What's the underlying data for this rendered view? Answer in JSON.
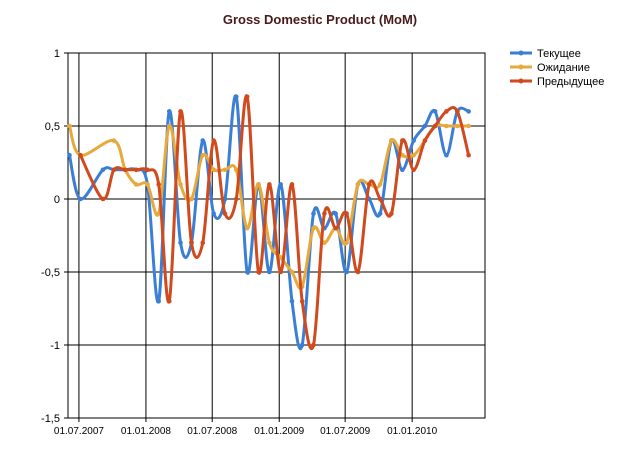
{
  "chart_data": {
    "type": "line",
    "title": "Gross Domestic Product (MoM)",
    "xlabel": "",
    "ylabel": "",
    "ylim": [
      -1.5,
      1
    ],
    "yticks": [
      -1.5,
      -1,
      -0.5,
      0,
      0.5,
      1
    ],
    "yticklabels": [
      "-1,5",
      "-1",
      "-0,5",
      "0",
      "0,5",
      "1"
    ],
    "xlim": [
      "2007-06-01",
      "2010-07-20"
    ],
    "xticks": [
      "2007-07-01",
      "2008-01-01",
      "2008-07-01",
      "2009-01-01",
      "2009-07-01",
      "2010-01-01"
    ],
    "xticklabels": [
      "01.07.2007",
      "01.01.2008",
      "01.07.2008",
      "01.01.2009",
      "01.07.2009",
      "01.01.2010"
    ],
    "grid": true,
    "legend_position": "top-right",
    "series": [
      {
        "name": "Текущее",
        "color": "#3a7fd5",
        "x": [
          "2007-06-05",
          "2007-07-05",
          "2007-09-05",
          "2007-10-05",
          "2007-11-05",
          "2007-12-05",
          "2008-01-05",
          "2008-02-05",
          "2008-03-05",
          "2008-04-05",
          "2008-05-05",
          "2008-06-05",
          "2008-07-05",
          "2008-08-05",
          "2008-09-05",
          "2008-10-05",
          "2008-11-05",
          "2008-12-05",
          "2009-01-05",
          "2009-02-05",
          "2009-03-05",
          "2009-04-05",
          "2009-05-05",
          "2009-06-05",
          "2009-07-05",
          "2009-08-05",
          "2009-09-05",
          "2009-10-05",
          "2009-11-05",
          "2009-12-05",
          "2010-01-05",
          "2010-02-05",
          "2010-03-05",
          "2010-04-05",
          "2010-05-05",
          "2010-06-05"
        ],
        "y": [
          0.3,
          0.0,
          0.2,
          0.2,
          0.2,
          0.2,
          0.1,
          -0.7,
          0.6,
          -0.3,
          -0.3,
          0.4,
          -0.1,
          0.0,
          0.7,
          -0.5,
          0.1,
          -0.5,
          0.1,
          -0.7,
          -1.0,
          -0.1,
          -0.2,
          -0.1,
          -0.5,
          0.1,
          0.0,
          -0.1,
          0.4,
          0.2,
          0.4,
          0.5,
          0.6,
          0.3,
          0.6,
          0.6
        ]
      },
      {
        "name": "Ожидание",
        "color": "#e8a93c",
        "x": [
          "2007-06-05",
          "2007-07-05",
          "2007-10-05",
          "2007-11-05",
          "2007-12-05",
          "2008-01-05",
          "2008-02-05",
          "2008-03-05",
          "2008-04-05",
          "2008-05-05",
          "2008-06-05",
          "2008-07-05",
          "2008-08-05",
          "2008-09-05",
          "2008-10-05",
          "2008-11-05",
          "2008-12-05",
          "2009-01-05",
          "2009-02-05",
          "2009-03-05",
          "2009-04-05",
          "2009-05-05",
          "2009-06-05",
          "2009-07-05",
          "2009-08-05",
          "2009-09-05",
          "2009-10-05",
          "2009-11-05",
          "2009-12-05",
          "2010-01-05",
          "2010-02-05",
          "2010-03-05",
          "2010-04-05",
          "2010-05-05",
          "2010-06-05"
        ],
        "y": [
          0.5,
          0.3,
          0.4,
          0.2,
          0.1,
          0.1,
          -0.1,
          0.5,
          0.1,
          0.0,
          0.3,
          0.2,
          0.2,
          0.2,
          -0.2,
          0.1,
          -0.3,
          -0.4,
          -0.5,
          -0.6,
          -0.2,
          -0.3,
          -0.2,
          -0.3,
          0.1,
          0.1,
          0.1,
          0.4,
          0.3,
          0.3,
          0.4,
          0.5,
          0.5,
          0.5,
          0.5
        ]
      },
      {
        "name": "Предыдущее",
        "color": "#d04a1e",
        "x": [
          "2007-07-05",
          "2007-09-05",
          "2007-10-05",
          "2007-11-05",
          "2007-12-05",
          "2008-01-05",
          "2008-02-05",
          "2008-03-05",
          "2008-04-05",
          "2008-05-05",
          "2008-06-05",
          "2008-07-05",
          "2008-08-05",
          "2008-09-05",
          "2008-10-05",
          "2008-11-05",
          "2008-12-05",
          "2009-01-05",
          "2009-02-05",
          "2009-03-05",
          "2009-04-05",
          "2009-05-05",
          "2009-06-05",
          "2009-07-05",
          "2009-08-05",
          "2009-09-05",
          "2009-10-05",
          "2009-11-05",
          "2009-12-05",
          "2010-01-05",
          "2010-02-05",
          "2010-03-05",
          "2010-04-05",
          "2010-05-05",
          "2010-06-05"
        ],
        "y": [
          0.3,
          0.0,
          0.2,
          0.2,
          0.2,
          0.2,
          0.1,
          -0.7,
          0.6,
          -0.3,
          -0.3,
          0.4,
          -0.1,
          0.0,
          0.7,
          -0.5,
          0.1,
          -0.5,
          0.1,
          -0.7,
          -1.0,
          -0.1,
          -0.2,
          -0.1,
          -0.5,
          0.1,
          0.0,
          -0.1,
          0.4,
          0.2,
          0.4,
          0.5,
          0.6,
          0.6,
          0.3
        ]
      }
    ]
  }
}
